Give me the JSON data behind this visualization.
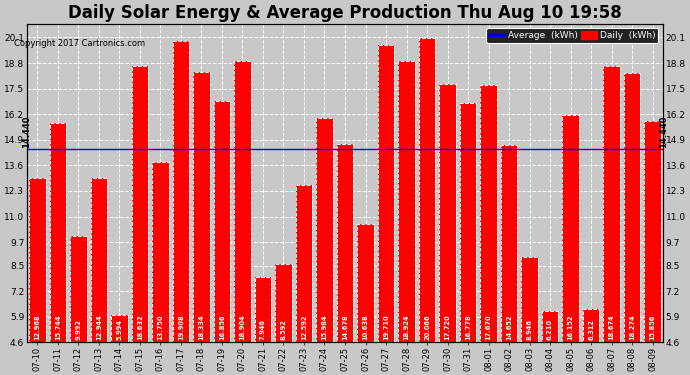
{
  "title": "Daily Solar Energy & Average Production Thu Aug 10 19:58",
  "copyright": "Copyright 2017 Cartronics.com",
  "average_value": 14.44,
  "categories": [
    "07-10",
    "07-11",
    "07-12",
    "07-13",
    "07-14",
    "07-15",
    "07-16",
    "07-17",
    "07-18",
    "07-19",
    "07-20",
    "07-21",
    "07-22",
    "07-23",
    "07-24",
    "07-25",
    "07-26",
    "07-27",
    "07-28",
    "07-29",
    "07-30",
    "07-31",
    "08-01",
    "08-02",
    "08-03",
    "08-04",
    "08-05",
    "08-06",
    "08-07",
    "08-08",
    "08-09"
  ],
  "values": [
    12.968,
    15.744,
    9.992,
    12.944,
    5.994,
    18.632,
    13.75,
    19.908,
    18.334,
    16.856,
    18.904,
    7.946,
    8.592,
    12.592,
    15.984,
    14.678,
    10.638,
    19.71,
    18.924,
    20.066,
    17.72,
    16.778,
    17.67,
    14.652,
    8.946,
    6.21,
    16.152,
    6.312,
    18.674,
    18.274,
    15.856
  ],
  "bar_color": "#ff0000",
  "avg_line_color": "#0000ff",
  "ylim_min": 4.6,
  "ylim_max": 20.8,
  "yticks": [
    4.6,
    5.9,
    7.2,
    8.5,
    9.7,
    11.0,
    12.3,
    13.6,
    14.9,
    16.2,
    17.5,
    18.8,
    20.1
  ],
  "bg_color": "#c8c8c8",
  "plot_bg_color": "#c8c8c8",
  "grid_color": "#ffffff",
  "title_fontsize": 12,
  "label_fontsize": 6.5,
  "avg_label": "14.440",
  "legend_avg_color": "#0000cc",
  "legend_daily_color": "#ff0000"
}
